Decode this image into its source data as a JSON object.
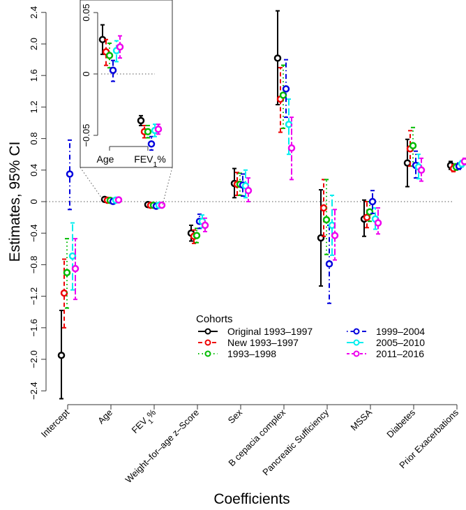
{
  "chart_data": {
    "type": "scatter",
    "subtype": "point estimates with 95% confidence intervals",
    "xlabel": "Coefficients",
    "ylabel": "Estimates, 95% CI",
    "ylim": [
      -2.4,
      2.4
    ],
    "yticks": [
      "2.4",
      "2.0",
      "1.6",
      "1.2",
      "0.8",
      "0.4",
      "0",
      "−0.4",
      "−0.8",
      "−1.2",
      "−1.6",
      "−2.0",
      "−2.4"
    ],
    "categories": [
      "Intercept",
      "Age",
      "FEV1%",
      "Weight–for–age z–Score",
      "Sex",
      "B cepacia complex",
      "Pancreatic Sufficiency",
      "MSSA",
      "Diabetes",
      "Prior Exacerbations"
    ],
    "reference_line": 0,
    "legend": {
      "title": "Cohorts",
      "placement": "bottom-right"
    },
    "series": [
      {
        "name": "Original 1993–1997",
        "color": "#000000",
        "line": "solid",
        "values": [
          -1.95,
          0.028,
          -0.038,
          -0.4,
          0.23,
          1.82,
          -0.46,
          -0.22,
          0.49,
          0.46
        ],
        "lower": [
          -2.5,
          0.016,
          -0.042,
          -0.5,
          0.05,
          1.23,
          -1.07,
          -0.44,
          0.19,
          0.41
        ],
        "upper": [
          -1.38,
          0.04,
          -0.034,
          -0.3,
          0.42,
          2.42,
          0.15,
          0.02,
          0.79,
          0.51
        ]
      },
      {
        "name": "New 1993–1997",
        "color": "#ee0000",
        "line": "dashed",
        "values": [
          -1.16,
          0.018,
          -0.047,
          -0.44,
          0.22,
          1.3,
          -0.08,
          -0.2,
          0.67,
          0.42
        ],
        "lower": [
          -1.6,
          0.007,
          -0.052,
          -0.53,
          0.08,
          0.88,
          -0.44,
          -0.33,
          0.45,
          0.38
        ],
        "upper": [
          -0.73,
          0.028,
          -0.042,
          -0.36,
          0.37,
          1.7,
          0.28,
          0.0,
          0.9,
          0.47
        ]
      },
      {
        "name": "1993–1998",
        "color": "#00bb00",
        "line": "dotted",
        "values": [
          -0.9,
          0.015,
          -0.047,
          -0.43,
          0.22,
          1.35,
          -0.23,
          -0.13,
          0.71,
          0.44
        ],
        "lower": [
          -1.35,
          0.005,
          -0.052,
          -0.52,
          0.08,
          0.93,
          -0.67,
          -0.25,
          0.45,
          0.4
        ],
        "upper": [
          -0.47,
          0.025,
          -0.042,
          -0.34,
          0.36,
          1.73,
          0.28,
          0.0,
          0.94,
          0.48
        ]
      },
      {
        "name": "1999–2004",
        "color": "#0000dd",
        "line": "dotdash",
        "values": [
          0.35,
          0.003,
          -0.057,
          -0.25,
          0.21,
          1.43,
          -0.79,
          0.0,
          0.46,
          0.45
        ],
        "lower": [
          -0.1,
          -0.006,
          -0.062,
          -0.34,
          0.07,
          1.07,
          -1.29,
          -0.15,
          0.3,
          0.41
        ],
        "upper": [
          0.78,
          0.011,
          -0.051,
          -0.16,
          0.35,
          1.8,
          -0.3,
          0.14,
          0.64,
          0.49
        ]
      },
      {
        "name": "2005–2010",
        "color": "#00eeee",
        "line": "longdash",
        "values": [
          -0.69,
          0.019,
          -0.046,
          -0.25,
          0.2,
          0.98,
          -0.3,
          -0.22,
          0.44,
          0.48
        ],
        "lower": [
          -1.12,
          0.01,
          -0.051,
          -0.33,
          0.05,
          0.6,
          -0.68,
          -0.35,
          0.29,
          0.44
        ],
        "upper": [
          -0.27,
          0.027,
          -0.041,
          -0.17,
          0.4,
          1.3,
          0.08,
          -0.08,
          0.6,
          0.52
        ]
      },
      {
        "name": "2011–2016",
        "color": "#ee00ee",
        "line": "twodash",
        "values": [
          -0.85,
          0.022,
          -0.045,
          -0.3,
          0.14,
          0.68,
          -0.43,
          -0.27,
          0.4,
          0.51
        ],
        "lower": [
          -1.24,
          0.013,
          -0.049,
          -0.38,
          0.0,
          0.28,
          -0.74,
          -0.41,
          0.26,
          0.47
        ],
        "upper": [
          -0.47,
          0.031,
          -0.041,
          -0.21,
          0.3,
          1.07,
          -0.1,
          -0.08,
          0.55,
          0.55
        ]
      }
    ],
    "inset": {
      "categories": [
        "Age",
        "FEV1%"
      ],
      "ylim": [
        -0.06,
        0.06
      ],
      "yticks": [
        "0.05",
        "0",
        "−0.05"
      ],
      "reference_line": 0
    }
  }
}
